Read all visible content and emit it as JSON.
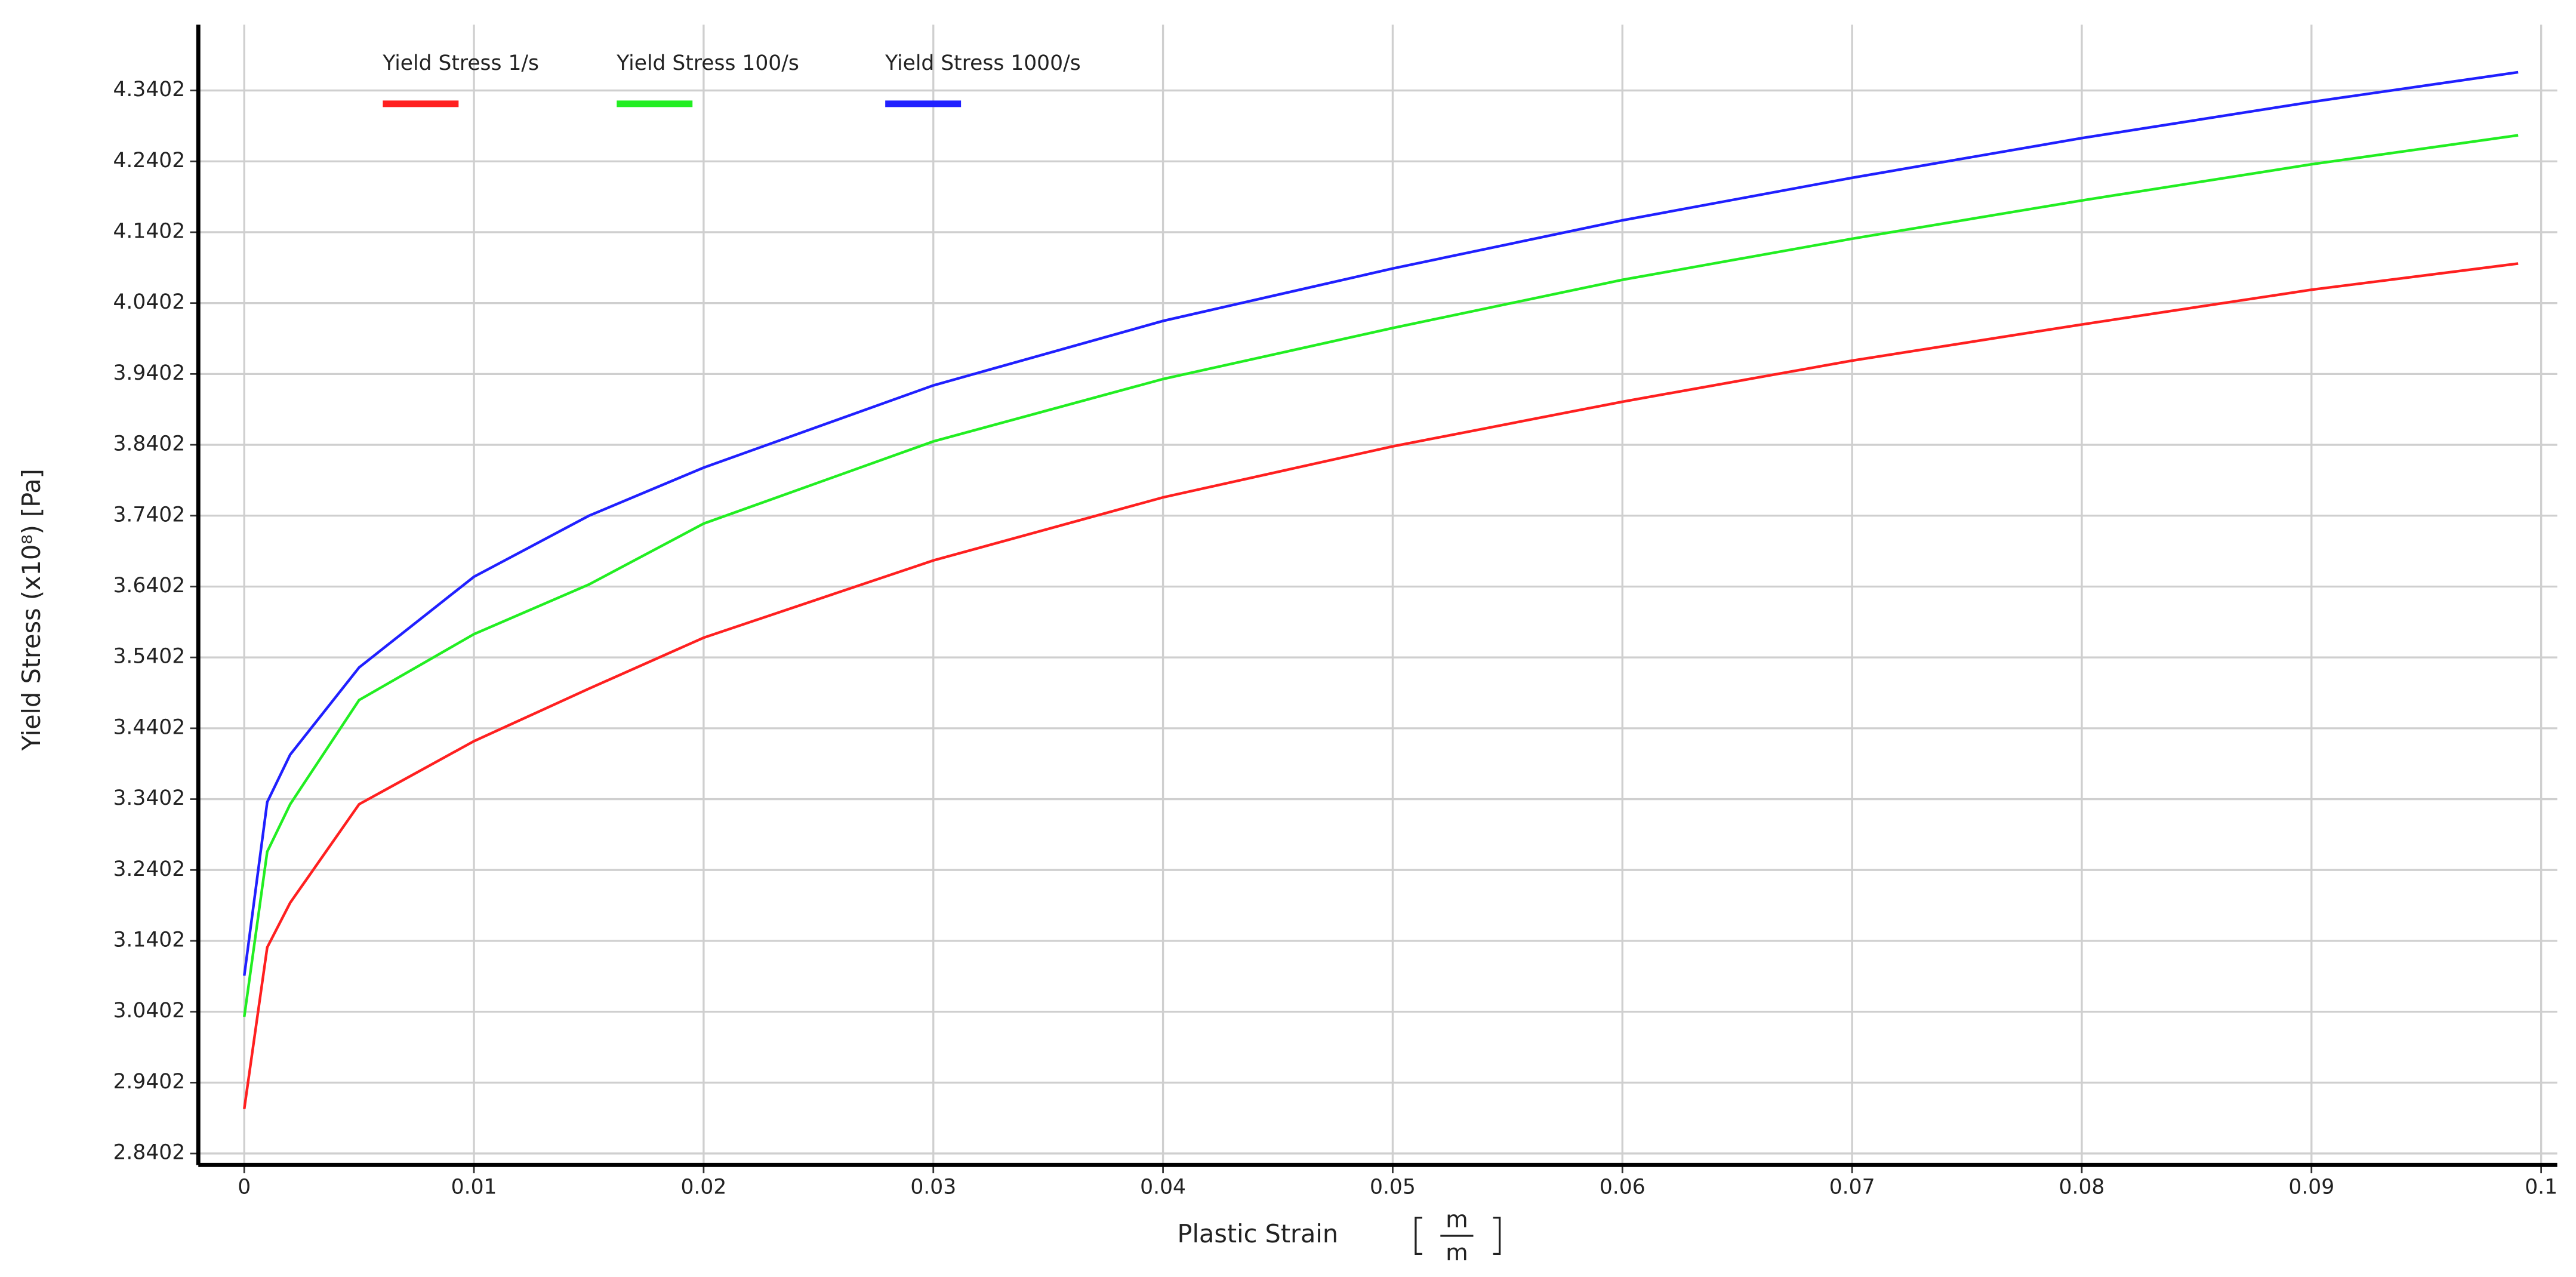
{
  "chart_data": {
    "type": "line",
    "x_label": "Plastic Strain",
    "x_unit": [
      "m",
      "m"
    ],
    "y_label": "Yield Stress  (x10⁸)  [Pa]",
    "x": [
      0,
      0.001,
      0.002,
      0.005,
      0.01,
      0.015,
      0.02,
      0.03,
      0.04,
      0.05,
      0.06,
      0.07,
      0.08,
      0.09,
      0.099
    ],
    "series": [
      {
        "name": "Yield Stress 1/s",
        "color": "#ff2020",
        "values": [
          2.903,
          3.131,
          3.194,
          3.333,
          3.422,
          3.496,
          3.568,
          3.677,
          3.766,
          3.838,
          3.901,
          3.959,
          4.01,
          4.059,
          4.096
        ]
      },
      {
        "name": "Yield Stress 100/s",
        "color": "#22ee22",
        "values": [
          3.033,
          3.266,
          3.333,
          3.48,
          3.573,
          3.643,
          3.729,
          3.845,
          3.933,
          4.005,
          4.073,
          4.131,
          4.185,
          4.236,
          4.277
        ]
      },
      {
        "name": "Yield Stress 1000/s",
        "color": "#2020ff",
        "values": [
          3.091,
          3.336,
          3.403,
          3.526,
          3.654,
          3.74,
          3.808,
          3.924,
          4.015,
          4.089,
          4.157,
          4.217,
          4.273,
          4.324,
          4.366
        ]
      }
    ],
    "xlim": [
      -0.002,
      0.1007
    ],
    "ylim": [
      2.824,
      4.433
    ],
    "xticks": [
      0,
      0.01,
      0.02,
      0.03,
      0.04,
      0.05,
      0.06,
      0.07,
      0.08,
      0.09,
      0.1
    ],
    "yticks": [
      2.8402,
      2.9402,
      3.0402,
      3.1402,
      3.2402,
      3.3402,
      3.4402,
      3.5402,
      3.6402,
      3.7402,
      3.8402,
      3.9402,
      4.0402,
      4.1402,
      4.2402,
      4.3402
    ],
    "grid": true,
    "legend": "top-left"
  }
}
